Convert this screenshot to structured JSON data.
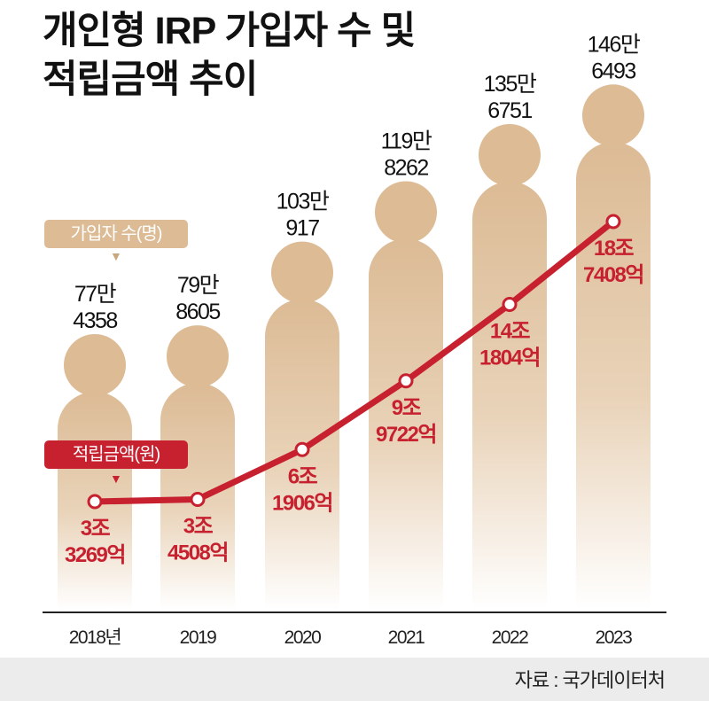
{
  "title_line1": "개인형 IRP 가입자 수 및",
  "title_line2": "적립금액 추이",
  "legend": {
    "subscribers": "가입자 수(명)",
    "amount": "적립금액(원)"
  },
  "source": "자료 : 국가데이터처",
  "colors": {
    "figure": "#dcbb95",
    "line": "#c7202f",
    "text": "#111111"
  },
  "chart_data": {
    "type": "bar+line",
    "categories": [
      "2018년",
      "2019",
      "2020",
      "2021",
      "2022",
      "2023"
    ],
    "series": [
      {
        "name": "가입자 수(명)",
        "type": "pictogram-bar",
        "values": [
          774358,
          798605,
          1030917,
          1198262,
          1356751,
          1466493
        ],
        "labels": [
          [
            "77만",
            "4358"
          ],
          [
            "79만",
            "8605"
          ],
          [
            "103만",
            "917"
          ],
          [
            "119만",
            "8262"
          ],
          [
            "135만",
            "6751"
          ],
          [
            "146만",
            "6493"
          ]
        ]
      },
      {
        "name": "적립금액(원)",
        "type": "line",
        "values_won_trillion": [
          3.3269,
          3.4508,
          6.1906,
          9.9722,
          14.1804,
          18.7408
        ],
        "labels": [
          [
            "3조",
            "3269억"
          ],
          [
            "3조",
            "4508억"
          ],
          [
            "6조",
            "1906억"
          ],
          [
            "9조",
            "9722억"
          ],
          [
            "14조",
            "1804억"
          ],
          [
            "18조",
            "7408억"
          ]
        ]
      }
    ]
  }
}
